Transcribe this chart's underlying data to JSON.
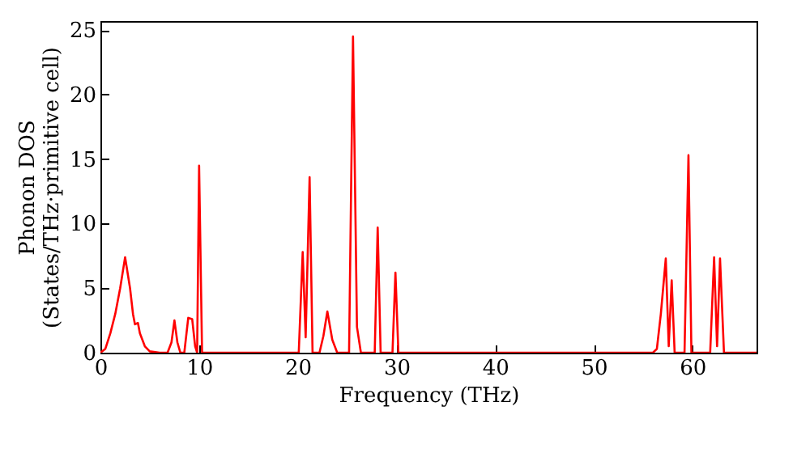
{
  "chart_data": {
    "type": "line",
    "xlabel": "Frequency (THz)",
    "ylabel": "Phonon DOS\n(States/THz·primitive cell)",
    "x": [
      0,
      0.5,
      1,
      1.5,
      2,
      2.5,
      3,
      3.3,
      3.5,
      3.8,
      4,
      4.5,
      5,
      6,
      6.8,
      7.2,
      7.5,
      7.8,
      8.1,
      8.5,
      8.9,
      9.3,
      9.6,
      9.8,
      10,
      10.3,
      20.1,
      20.5,
      20.8,
      21.2,
      21.5,
      22.2,
      22.6,
      23,
      23.5,
      24,
      25.2,
      25.6,
      26,
      26.4,
      27.8,
      28.1,
      28.4,
      29.6,
      29.9,
      30.2,
      56,
      56.4,
      56.8,
      57.3,
      57.6,
      57.9,
      58.2,
      59.2,
      59.6,
      59.9,
      61.8,
      62.2,
      62.5,
      62.8,
      63.2,
      66.5
    ],
    "series": [
      {
        "color": "#ff0000",
        "values": [
          0,
          0.3,
          1.5,
          3,
          5,
          7.4,
          5,
          3,
          2.2,
          2.3,
          1.5,
          0.5,
          0.1,
          0,
          0,
          0.8,
          2.5,
          0.8,
          0,
          0,
          2.7,
          2.6,
          0.5,
          0,
          14.5,
          0,
          0,
          7.8,
          1.2,
          13.6,
          0,
          0,
          1.3,
          3.2,
          1,
          0,
          0,
          24.5,
          2,
          0,
          0,
          9.7,
          0,
          0,
          6.2,
          0,
          0,
          0.3,
          3,
          7.3,
          0.5,
          5.6,
          0,
          0,
          15.3,
          0,
          0,
          7.4,
          0.5,
          7.3,
          0,
          0
        ]
      }
    ],
    "xlim": [
      0,
      66.5
    ],
    "ylim": [
      0,
      25.7
    ],
    "xticks": [
      0,
      10,
      20,
      30,
      40,
      50,
      60
    ],
    "yticks": [
      0,
      5,
      10,
      15,
      20,
      25
    ],
    "grid": false,
    "legend": false,
    "line_style": "solid",
    "marker": "none"
  }
}
